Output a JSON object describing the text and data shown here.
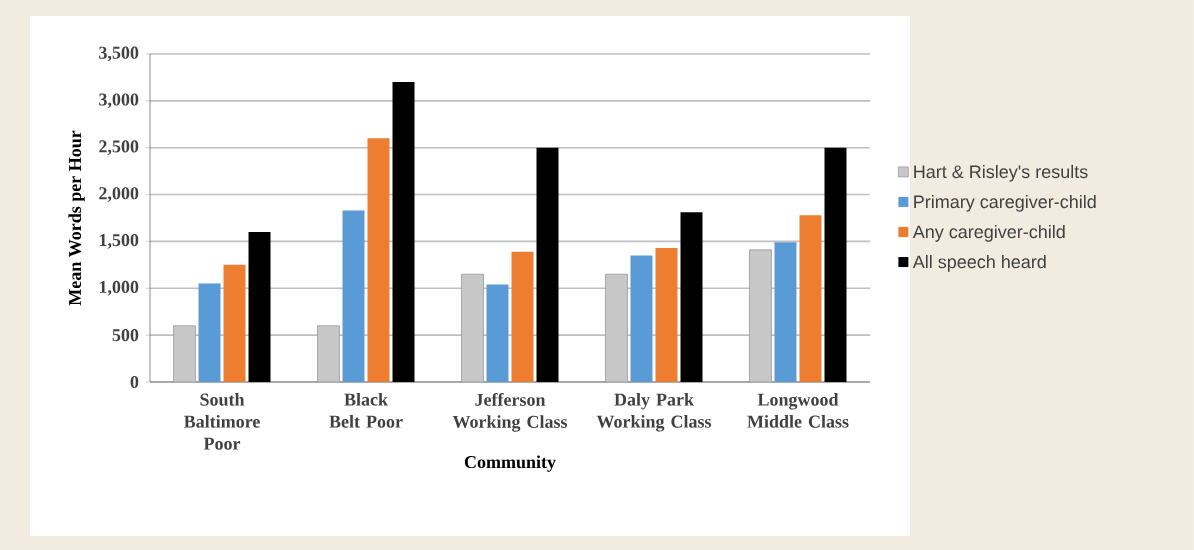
{
  "chart_data": {
    "type": "bar",
    "xlabel": "Community",
    "ylabel": "Mean Words per Hour",
    "categories": [
      "South Baltimore Poor",
      "Black Belt Poor",
      "Jefferson Working Class",
      "Daly Park Working Class",
      "Longwood Middle Class"
    ],
    "series": [
      {
        "name": "Hart & Risley's results",
        "color": "#9a9a9a",
        "values": [
          600,
          600,
          1150,
          1150,
          1410
        ]
      },
      {
        "name": "Primary caregiver-child",
        "color": "#5b9bd5",
        "values": [
          1050,
          1830,
          1040,
          1350,
          1490
        ]
      },
      {
        "name": "Any caregiver-child",
        "color": "#ed7d31",
        "values": [
          1250,
          2600,
          1390,
          1430,
          1780
        ]
      },
      {
        "name": "All speech heard",
        "color": "#000000",
        "values": [
          1600,
          3200,
          2500,
          1810,
          2500
        ]
      }
    ],
    "ylim": [
      0,
      3500
    ],
    "yticks": [
      {
        "value": 0,
        "label": "0"
      },
      {
        "value": 500,
        "label": "500"
      },
      {
        "value": 1000,
        "label": "1,000"
      },
      {
        "value": 1500,
        "label": "1,500"
      },
      {
        "value": 2000,
        "label": "2,000"
      },
      {
        "value": 2500,
        "label": "2,500"
      },
      {
        "value": 3000,
        "label": "3,000"
      },
      {
        "value": 3500,
        "label": "3,500"
      }
    ],
    "grid": "y",
    "legend": "right"
  }
}
